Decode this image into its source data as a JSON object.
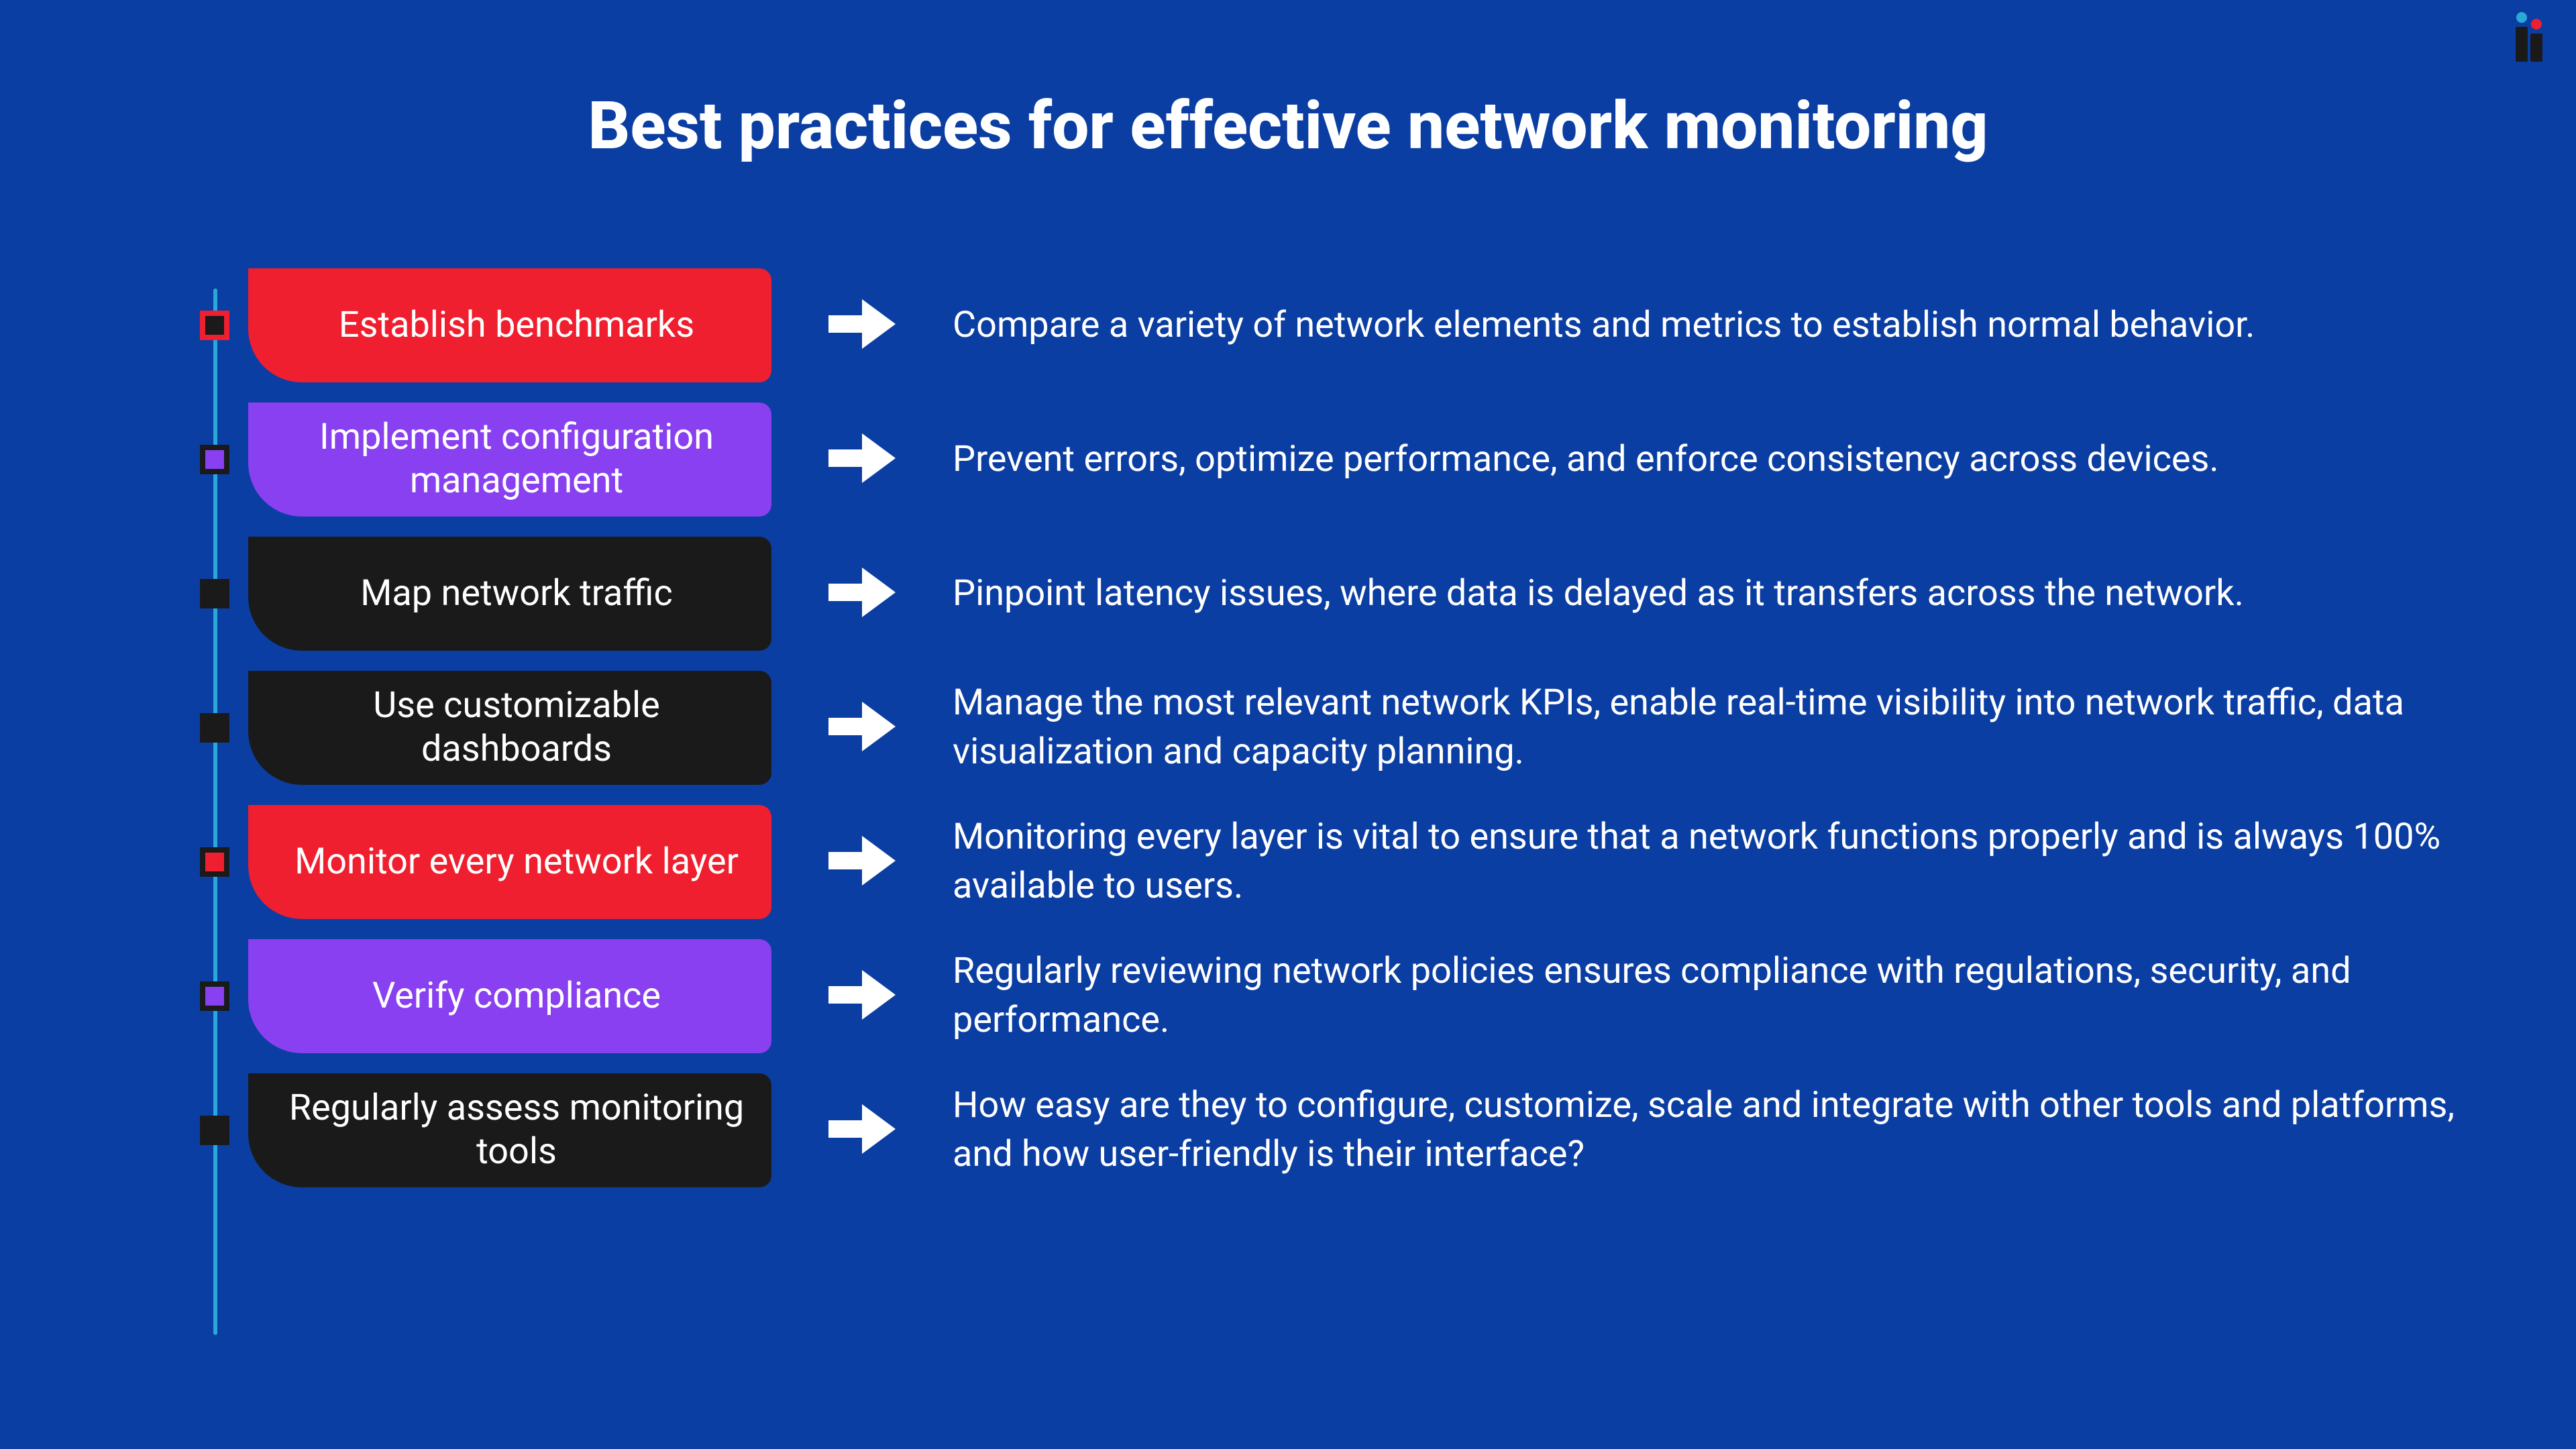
{
  "background_color": "#0b3ea3",
  "title": "Best practices for effective network monitoring",
  "title_fontsize": 98,
  "title_color": "#ffffff",
  "logo": {
    "bar_color": "#1a1a1a",
    "bar1_height": 52,
    "bar2_height": 42,
    "dot1_color": "#2aa8d8",
    "dot2_color": "#ef1f2f"
  },
  "timeline_color": "#2aa8d8",
  "arrow_color": "#ffffff",
  "tag_fontsize": 54,
  "desc_fontsize": 54,
  "desc_color": "#ffffff",
  "items": [
    {
      "label": "Establish benchmarks",
      "description": "Compare a variety of network elements and metrics to establish normal behavior.",
      "tag_color": "#ef1f2f",
      "marker_border": "#ef1f2f",
      "marker_fill": "#1a1a1a"
    },
    {
      "label": "Implement configuration management",
      "description": "Prevent errors, optimize performance, and enforce consistency across devices.",
      "tag_color": "#8840f0",
      "marker_border": "#1a1a1a",
      "marker_fill": "#8840f0"
    },
    {
      "label": "Map network traffic",
      "description": "Pinpoint latency issues, where data is delayed as it transfers across the network.",
      "tag_color": "#1a1a1a",
      "marker_border": "#1a1a1a",
      "marker_fill": "#1a1a1a"
    },
    {
      "label": "Use customizable dashboards",
      "description": "Manage the most relevant network KPIs, enable real-time visibility into network traffic, data visualization and capacity planning.",
      "tag_color": "#1a1a1a",
      "marker_border": "#1a1a1a",
      "marker_fill": "#1a1a1a"
    },
    {
      "label": "Monitor every network layer",
      "description": "Monitoring every layer is vital to ensure that a network functions properly and is always 100% available to users.",
      "tag_color": "#ef1f2f",
      "marker_border": "#1a1a1a",
      "marker_fill": "#ef1f2f"
    },
    {
      "label": "Verify compliance",
      "description": "Regularly reviewing network policies ensures compliance with regulations, security, and performance.",
      "tag_color": "#8840f0",
      "marker_border": "#1a1a1a",
      "marker_fill": "#8840f0"
    },
    {
      "label": "Regularly assess monitoring tools",
      "description": "How easy are they to configure, customize, scale and integrate with other tools and platforms, and how user-friendly is their interface?",
      "tag_color": "#1a1a1a",
      "marker_border": "#1a1a1a",
      "marker_fill": "#1a1a1a"
    }
  ]
}
